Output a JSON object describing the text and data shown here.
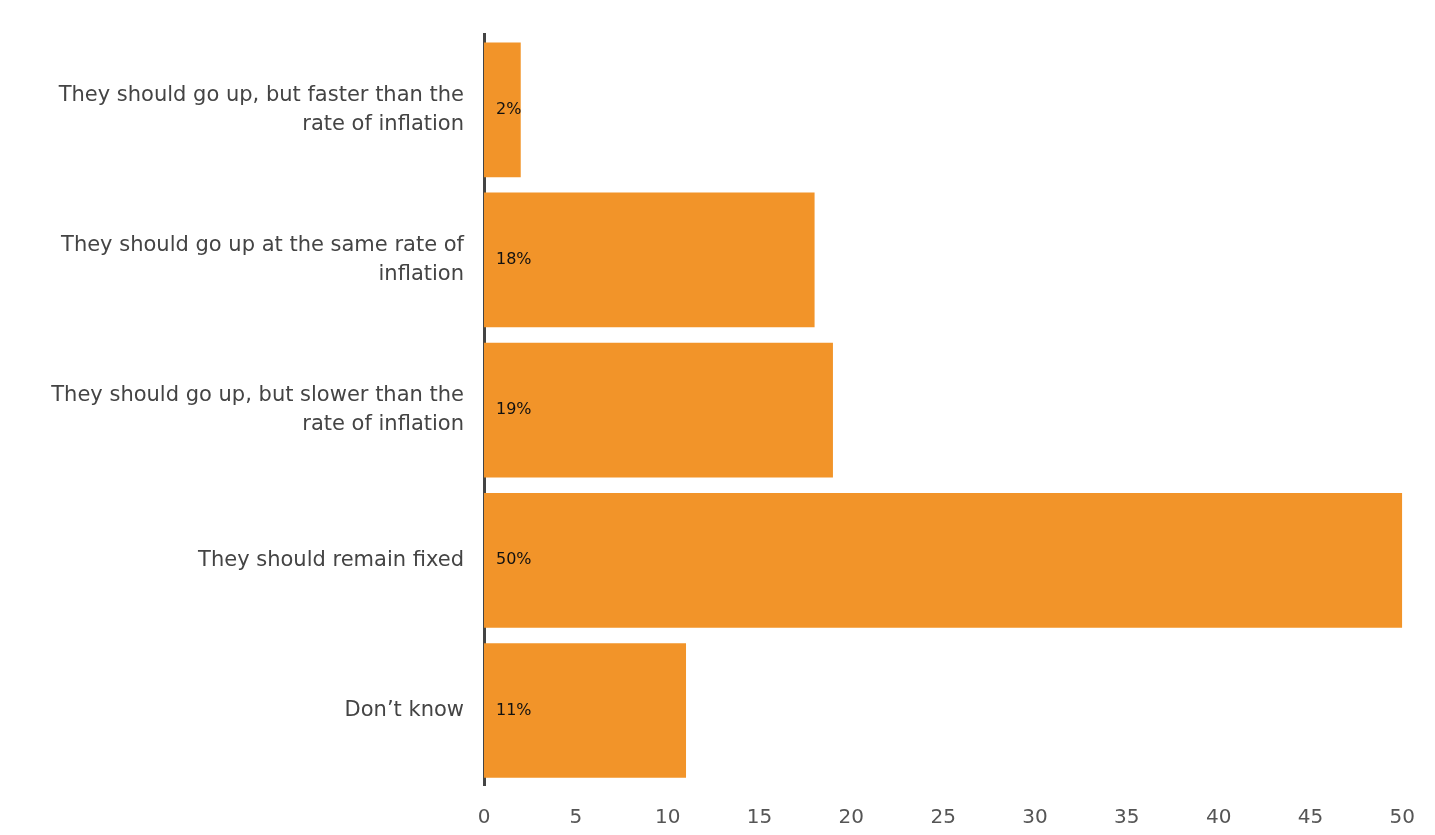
{
  "chart_data": {
    "type": "bar",
    "orientation": "horizontal",
    "categories": [
      "They should go up, but faster than the rate of inflation",
      "They should go up at the same rate of inflation",
      "They should go up, but slower than the rate of inflation",
      "They should remain fixed",
      "Don’t know"
    ],
    "values": [
      2,
      18,
      19,
      50,
      11
    ],
    "value_labels": [
      "2%",
      "18%",
      "19%",
      "50%",
      "11%"
    ],
    "color": "#f29429",
    "xlim": [
      0,
      50
    ],
    "xticks": [
      0,
      5,
      10,
      15,
      20,
      25,
      30,
      35,
      40,
      45,
      50
    ]
  }
}
